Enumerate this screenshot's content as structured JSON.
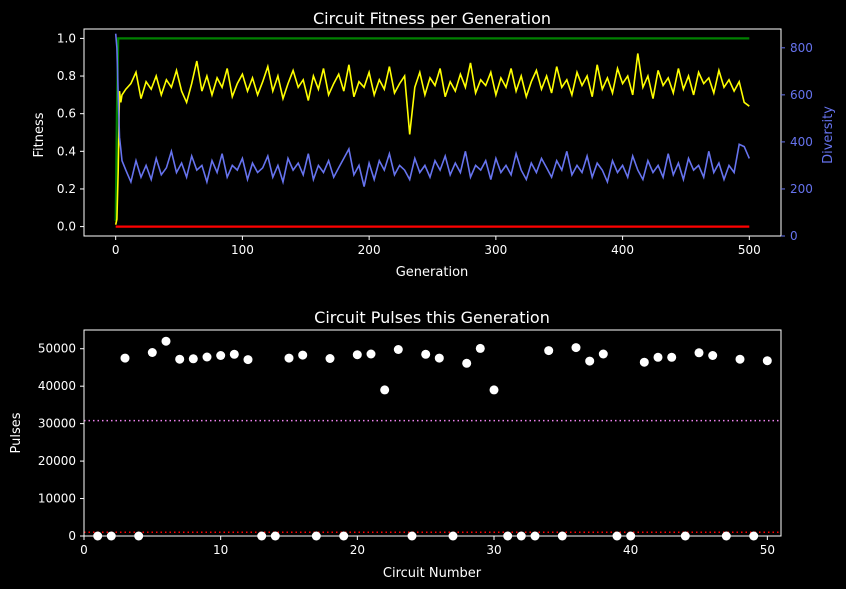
{
  "colors": {
    "background": "#000000",
    "text": "#ffffff",
    "best_fitness": "#008000",
    "mean_fitness": "#ffff00",
    "worst_fitness": "#ff0000",
    "diversity": "#6673ee",
    "pulses_points": "#ffffff",
    "upper_threshold": "#ee82ee",
    "lower_threshold": "#ff0000"
  },
  "chart_data": [
    {
      "type": "line",
      "title": "Circuit Fitness per Generation",
      "xlabel": "Generation",
      "ylabel": "Fitness",
      "y2label": "Diversity",
      "xlim": [
        -25,
        525
      ],
      "ylim": [
        -0.05,
        1.05
      ],
      "y2lim": [
        0,
        880
      ],
      "xticks": [
        0,
        100,
        200,
        300,
        400,
        500
      ],
      "yticks": [
        0.0,
        0.2,
        0.4,
        0.6,
        0.8,
        1.0
      ],
      "y2ticks": [
        0,
        200,
        400,
        600,
        800
      ],
      "grid": false,
      "series": [
        {
          "role": "best",
          "axis": "left",
          "color": "#008000",
          "x": [
            0,
            1,
            2,
            500
          ],
          "values": [
            0.03,
            0.6,
            1.0,
            1.0
          ]
        },
        {
          "role": "worst",
          "axis": "left",
          "color": "#ff0000",
          "x": [
            0,
            500
          ],
          "values": [
            0.0,
            0.0
          ]
        },
        {
          "role": "mean",
          "axis": "left",
          "color": "#ffff00",
          "x": [
            0,
            1,
            2,
            3,
            4,
            5,
            8,
            12,
            16,
            20,
            24,
            28,
            32,
            36,
            40,
            44,
            48,
            52,
            56,
            60,
            64,
            68,
            72,
            76,
            80,
            84,
            88,
            92,
            96,
            100,
            104,
            108,
            112,
            116,
            120,
            124,
            128,
            132,
            136,
            140,
            144,
            148,
            152,
            156,
            160,
            164,
            168,
            172,
            176,
            180,
            184,
            188,
            192,
            196,
            200,
            204,
            208,
            212,
            216,
            220,
            224,
            228,
            232,
            236,
            240,
            244,
            248,
            252,
            256,
            260,
            264,
            268,
            272,
            276,
            280,
            284,
            288,
            292,
            296,
            300,
            304,
            308,
            312,
            316,
            320,
            324,
            328,
            332,
            336,
            340,
            344,
            348,
            352,
            356,
            360,
            364,
            368,
            372,
            376,
            380,
            384,
            388,
            392,
            396,
            400,
            404,
            408,
            412,
            416,
            420,
            424,
            428,
            432,
            436,
            440,
            444,
            448,
            452,
            456,
            460,
            464,
            468,
            472,
            476,
            480,
            484,
            488,
            492,
            496,
            500
          ],
          "values": [
            0.01,
            0.04,
            0.3,
            0.72,
            0.66,
            0.7,
            0.73,
            0.76,
            0.82,
            0.68,
            0.77,
            0.73,
            0.8,
            0.7,
            0.78,
            0.74,
            0.83,
            0.72,
            0.66,
            0.76,
            0.88,
            0.72,
            0.8,
            0.7,
            0.79,
            0.74,
            0.84,
            0.69,
            0.76,
            0.81,
            0.72,
            0.79,
            0.7,
            0.77,
            0.85,
            0.72,
            0.8,
            0.68,
            0.76,
            0.83,
            0.74,
            0.78,
            0.67,
            0.8,
            0.73,
            0.84,
            0.7,
            0.76,
            0.81,
            0.72,
            0.86,
            0.69,
            0.77,
            0.74,
            0.82,
            0.7,
            0.78,
            0.73,
            0.85,
            0.71,
            0.76,
            0.8,
            0.49,
            0.74,
            0.82,
            0.7,
            0.79,
            0.75,
            0.84,
            0.69,
            0.77,
            0.72,
            0.81,
            0.74,
            0.87,
            0.71,
            0.78,
            0.75,
            0.82,
            0.7,
            0.79,
            0.74,
            0.84,
            0.72,
            0.8,
            0.69,
            0.77,
            0.83,
            0.73,
            0.8,
            0.71,
            0.85,
            0.74,
            0.78,
            0.7,
            0.82,
            0.75,
            0.8,
            0.69,
            0.86,
            0.73,
            0.79,
            0.71,
            0.84,
            0.76,
            0.8,
            0.7,
            0.92,
            0.74,
            0.8,
            0.68,
            0.83,
            0.75,
            0.79,
            0.71,
            0.84,
            0.73,
            0.8,
            0.7,
            0.82,
            0.76,
            0.79,
            0.71,
            0.83,
            0.74,
            0.78,
            0.72,
            0.77,
            0.66,
            0.64
          ]
        },
        {
          "role": "diversity",
          "axis": "right",
          "color": "#6673ee",
          "x": [
            0,
            1,
            2,
            3,
            4,
            5,
            8,
            12,
            16,
            20,
            24,
            28,
            32,
            36,
            40,
            44,
            48,
            52,
            56,
            60,
            64,
            68,
            72,
            76,
            80,
            84,
            88,
            92,
            96,
            100,
            104,
            108,
            112,
            116,
            120,
            124,
            128,
            132,
            136,
            140,
            144,
            148,
            152,
            156,
            160,
            164,
            168,
            172,
            176,
            180,
            184,
            188,
            192,
            196,
            200,
            204,
            208,
            212,
            216,
            220,
            224,
            228,
            232,
            236,
            240,
            244,
            248,
            252,
            256,
            260,
            264,
            268,
            272,
            276,
            280,
            284,
            288,
            292,
            296,
            300,
            304,
            308,
            312,
            316,
            320,
            324,
            328,
            332,
            336,
            340,
            344,
            348,
            352,
            356,
            360,
            364,
            368,
            372,
            376,
            380,
            384,
            388,
            392,
            396,
            400,
            404,
            408,
            412,
            416,
            420,
            424,
            428,
            432,
            436,
            440,
            444,
            448,
            452,
            456,
            460,
            464,
            468,
            472,
            476,
            480,
            484,
            488,
            492,
            496,
            500
          ],
          "values": [
            860,
            800,
            600,
            420,
            370,
            320,
            280,
            230,
            320,
            250,
            300,
            240,
            330,
            260,
            290,
            360,
            270,
            310,
            250,
            340,
            280,
            300,
            230,
            320,
            270,
            350,
            250,
            300,
            280,
            330,
            240,
            310,
            270,
            290,
            340,
            250,
            300,
            230,
            330,
            280,
            310,
            260,
            350,
            240,
            300,
            270,
            320,
            250,
            290,
            330,
            370,
            260,
            300,
            210,
            310,
            240,
            320,
            280,
            350,
            260,
            300,
            280,
            240,
            330,
            270,
            300,
            250,
            320,
            280,
            340,
            260,
            310,
            270,
            360,
            250,
            300,
            280,
            320,
            240,
            330,
            270,
            300,
            260,
            350,
            280,
            240,
            310,
            270,
            330,
            290,
            250,
            320,
            280,
            360,
            260,
            300,
            270,
            340,
            250,
            310,
            280,
            230,
            320,
            270,
            300,
            250,
            340,
            280,
            240,
            320,
            270,
            300,
            250,
            350,
            260,
            310,
            240,
            330,
            280,
            300,
            250,
            360,
            270,
            310,
            240,
            300,
            270,
            390,
            380,
            330
          ]
        }
      ]
    },
    {
      "type": "scatter",
      "title": "Circuit Pulses this Generation",
      "xlabel": "Circuit Number",
      "ylabel": "Pulses",
      "xlim": [
        0,
        51
      ],
      "ylim": [
        0,
        55000
      ],
      "xticks": [
        0,
        10,
        20,
        30,
        40,
        50
      ],
      "yticks": [
        0,
        10000,
        20000,
        30000,
        40000,
        50000
      ],
      "grid": false,
      "thresholds": [
        {
          "value": 30800,
          "color": "#ee82ee",
          "style": "dotted"
        },
        {
          "value": 1000,
          "color": "#ff0000",
          "style": "dotted"
        }
      ],
      "x": [
        1,
        2,
        3,
        4,
        5,
        6,
        7,
        8,
        9,
        10,
        11,
        12,
        13,
        14,
        15,
        16,
        17,
        18,
        19,
        20,
        21,
        22,
        23,
        24,
        25,
        26,
        27,
        28,
        29,
        30,
        31,
        32,
        33,
        34,
        35,
        36,
        37,
        38,
        39,
        40,
        41,
        42,
        43,
        44,
        45,
        46,
        47,
        48,
        49,
        50
      ],
      "values": [
        0,
        0,
        47500,
        0,
        49000,
        52000,
        47200,
        47300,
        47800,
        48200,
        48500,
        47100,
        0,
        0,
        47500,
        48300,
        0,
        47400,
        0,
        48400,
        48600,
        39000,
        49800,
        0,
        48500,
        47500,
        0,
        46100,
        50100,
        39000,
        0,
        0,
        0,
        49500,
        0,
        50300,
        46700,
        48600,
        0,
        0,
        46400,
        47700,
        47700,
        0,
        48900,
        48200,
        0,
        47200,
        0,
        46800
      ]
    }
  ]
}
